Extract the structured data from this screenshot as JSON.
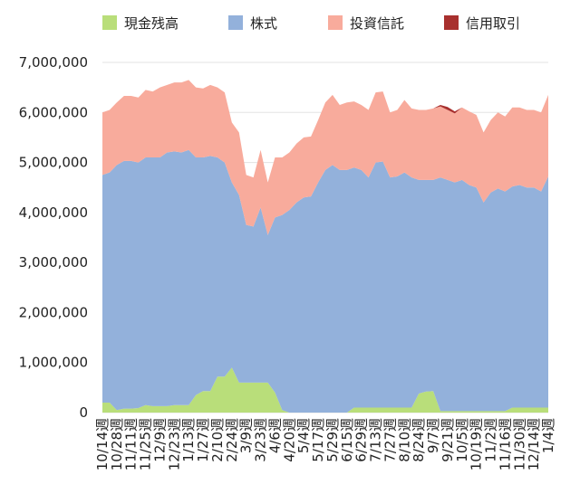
{
  "chart_data": {
    "type": "stacked_area",
    "categories": [
      "10/14週",
      null,
      "10/28週",
      null,
      "11/11週",
      null,
      "11/25週",
      null,
      "12/9週",
      null,
      "12/23週",
      null,
      "1/13週",
      null,
      "1/27週",
      null,
      "2/10週",
      null,
      "2/24週",
      null,
      "3/9週",
      null,
      "3/23週",
      null,
      "4/6週",
      null,
      "4/20週",
      null,
      "5/4週",
      null,
      "5/17週",
      null,
      "5/29週",
      null,
      "6/15週",
      null,
      "6/29週",
      null,
      "7/13週",
      null,
      "7/27週",
      null,
      "8/10週",
      null,
      "8/24週",
      null,
      "9/7週",
      null,
      "9/21週",
      null,
      "10/5週",
      null,
      "10/19週",
      null,
      "11/2週",
      null,
      "11/16週",
      null,
      "11/30週",
      null,
      "12/14週",
      null,
      "1/4週"
    ],
    "series": [
      {
        "name": "現金残高",
        "color": "#b9de7a",
        "values": [
          200000,
          200000,
          50000,
          80000,
          80000,
          90000,
          150000,
          130000,
          130000,
          130000,
          150000,
          150000,
          150000,
          350000,
          430000,
          430000,
          720000,
          720000,
          900000,
          600000,
          600000,
          600000,
          600000,
          600000,
          400000,
          50000,
          0,
          0,
          0,
          0,
          0,
          0,
          0,
          0,
          0,
          100000,
          100000,
          100000,
          100000,
          100000,
          100000,
          100000,
          100000,
          100000,
          380000,
          420000,
          430000,
          30000,
          30000,
          30000,
          30000,
          30000,
          30000,
          30000,
          30000,
          30000,
          30000,
          100000,
          100000,
          100000,
          100000,
          100000,
          100000
        ]
      },
      {
        "name": "株式",
        "color": "#93b1db",
        "values": [
          4550000,
          4600000,
          4900000,
          4950000,
          4950000,
          4910000,
          4950000,
          4970000,
          4970000,
          5070000,
          5070000,
          5050000,
          5100000,
          4750000,
          4670000,
          4700000,
          4380000,
          4280000,
          3700000,
          3750000,
          3150000,
          3120000,
          3500000,
          2950000,
          3500000,
          3900000,
          4050000,
          4200000,
          4300000,
          4320000,
          4600000,
          4850000,
          4950000,
          4850000,
          4850000,
          4800000,
          4750000,
          4600000,
          4900000,
          4920000,
          4600000,
          4620000,
          4700000,
          4600000,
          4270000,
          4230000,
          4220000,
          4670000,
          4620000,
          4570000,
          4620000,
          4520000,
          4470000,
          4170000,
          4370000,
          4450000,
          4390000,
          4420000,
          4450000,
          4400000,
          4400000,
          4320000,
          4620000
        ]
      },
      {
        "name": "投資信託",
        "color": "#f8ab9c",
        "values": [
          1250000,
          1250000,
          1250000,
          1300000,
          1300000,
          1300000,
          1350000,
          1320000,
          1400000,
          1350000,
          1380000,
          1400000,
          1400000,
          1400000,
          1380000,
          1420000,
          1400000,
          1400000,
          1200000,
          1250000,
          1000000,
          980000,
          1150000,
          1050000,
          1200000,
          1150000,
          1150000,
          1180000,
          1200000,
          1200000,
          1250000,
          1350000,
          1400000,
          1300000,
          1350000,
          1320000,
          1300000,
          1350000,
          1400000,
          1400000,
          1300000,
          1330000,
          1450000,
          1380000,
          1400000,
          1400000,
          1430000,
          1420000,
          1400000,
          1380000,
          1450000,
          1470000,
          1450000,
          1400000,
          1450000,
          1520000,
          1500000,
          1580000,
          1550000,
          1550000,
          1550000,
          1580000,
          1630000
        ]
      },
      {
        "name": "信用取引",
        "color": "#a8302e",
        "values": [
          0,
          0,
          0,
          0,
          0,
          0,
          0,
          0,
          0,
          0,
          0,
          0,
          0,
          0,
          0,
          0,
          0,
          0,
          0,
          0,
          0,
          0,
          0,
          0,
          0,
          0,
          0,
          0,
          0,
          0,
          0,
          0,
          0,
          0,
          0,
          0,
          0,
          0,
          0,
          0,
          0,
          0,
          0,
          0,
          0,
          0,
          0,
          30000,
          60000,
          40000,
          0,
          0,
          0,
          0,
          0,
          0,
          0,
          0,
          0,
          0,
          0,
          0,
          0
        ]
      }
    ],
    "ylim": [
      0,
      7000000
    ],
    "yticks": [
      0,
      {
        "value": 1000000,
        "label": "1,000,000"
      },
      {
        "value": 2000000,
        "label": "2,000,000"
      },
      {
        "value": 3000000,
        "label": "3,000,000"
      },
      {
        "value": 4000000,
        "label": "4,000,000"
      },
      {
        "value": 5000000,
        "label": "5,000,000"
      },
      {
        "value": 6000000,
        "label": "6,000,000"
      },
      {
        "value": 7000000,
        "label": "7,000,000"
      }
    ],
    "grid": true,
    "legend": "top"
  }
}
